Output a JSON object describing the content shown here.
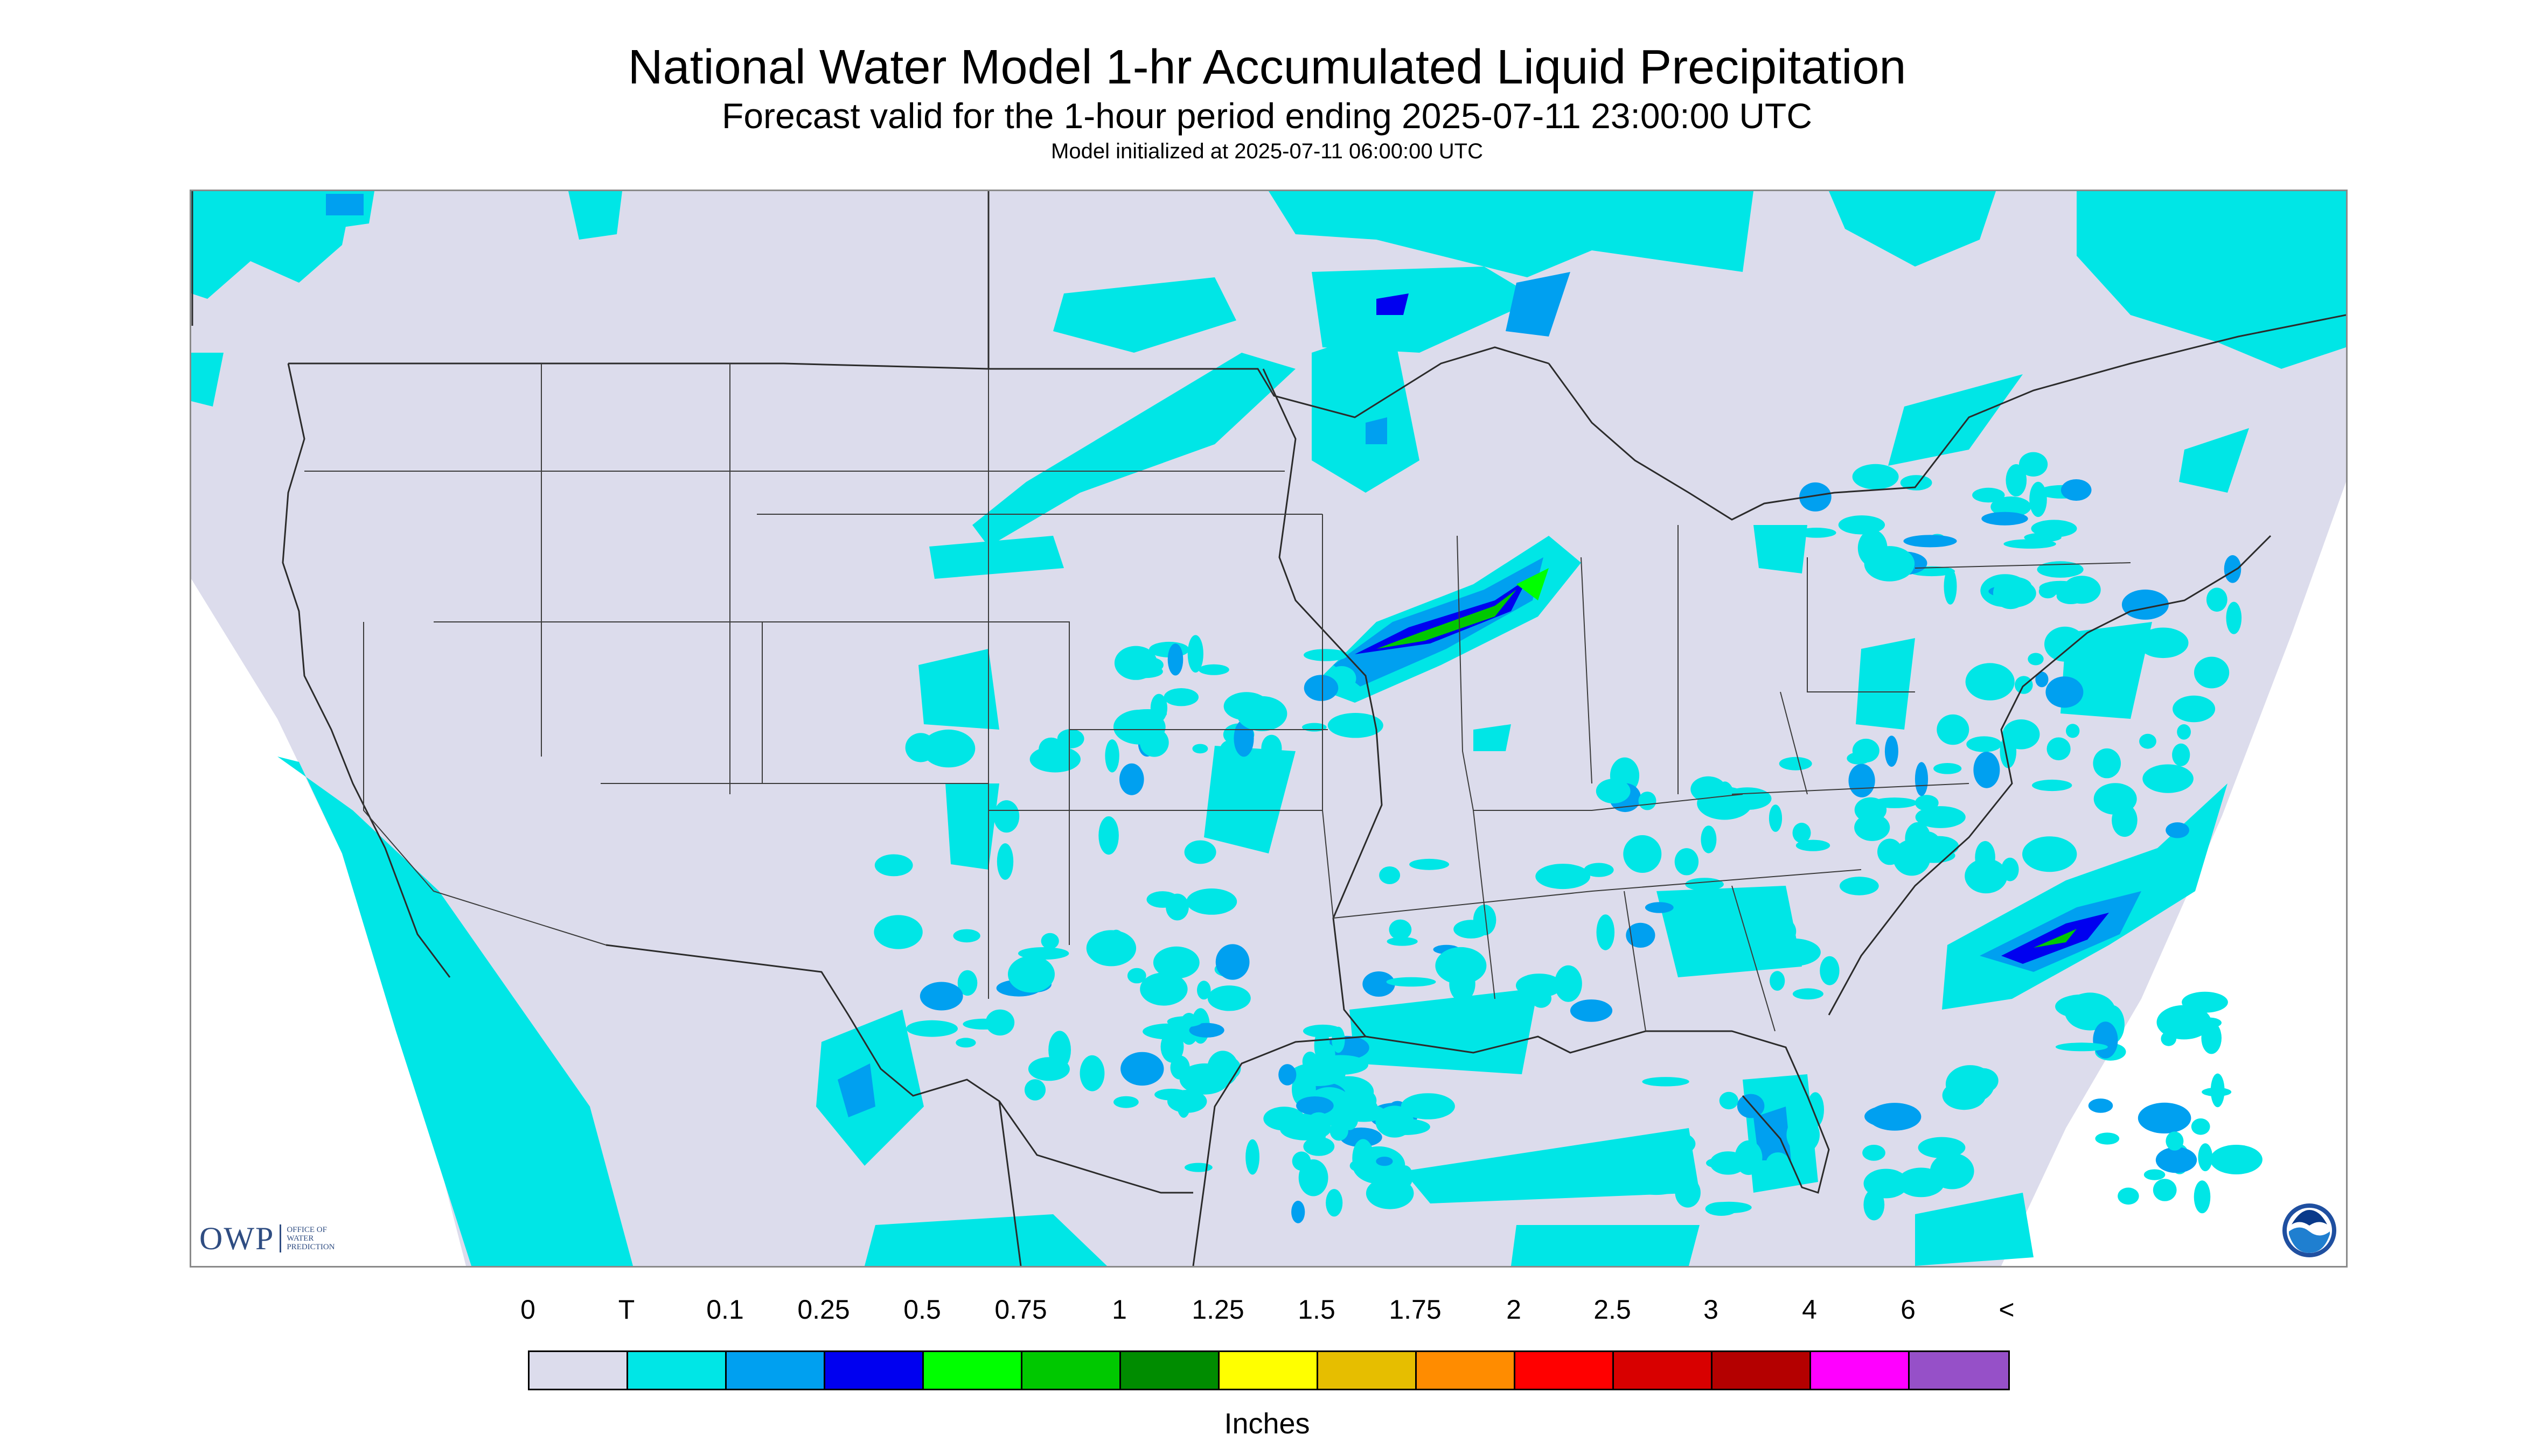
{
  "header": {
    "title": "National Water Model 1-hr Accumulated Liquid Precipitation",
    "subtitle": "Forecast valid for the 1-hour period ending 2025-07-11 23:00:00 UTC",
    "initialized": "Model initialized at 2025-07-11 06:00:00 UTC"
  },
  "logos": {
    "owp_big": "OWP",
    "owp_small": "OFFICE OF\nWATER\nPREDICTION",
    "noaa_text": "NOAA"
  },
  "legend": {
    "labels": [
      "0",
      "T",
      "0.1",
      "0.25",
      "0.5",
      "0.75",
      "1",
      "1.25",
      "1.5",
      "1.75",
      "2",
      "2.5",
      "3",
      "4",
      "6",
      "<"
    ],
    "colors": [
      "#dcdcec",
      "#00e6e6",
      "#00a0f0",
      "#0000f0",
      "#00ff00",
      "#00c800",
      "#008c00",
      "#ffff00",
      "#e6be00",
      "#ff8c00",
      "#ff0000",
      "#d80000",
      "#b40000",
      "#ff00ff",
      "#9650c8"
    ],
    "units": "Inches"
  },
  "map_colors": {
    "land": "#dcdcec",
    "outside": "#ffffff",
    "boundary": "#2b2b2b",
    "trace": "#00e6e6",
    "light": "#00a0f0",
    "moderate": "#0000f0",
    "heavy": "#00c800"
  }
}
